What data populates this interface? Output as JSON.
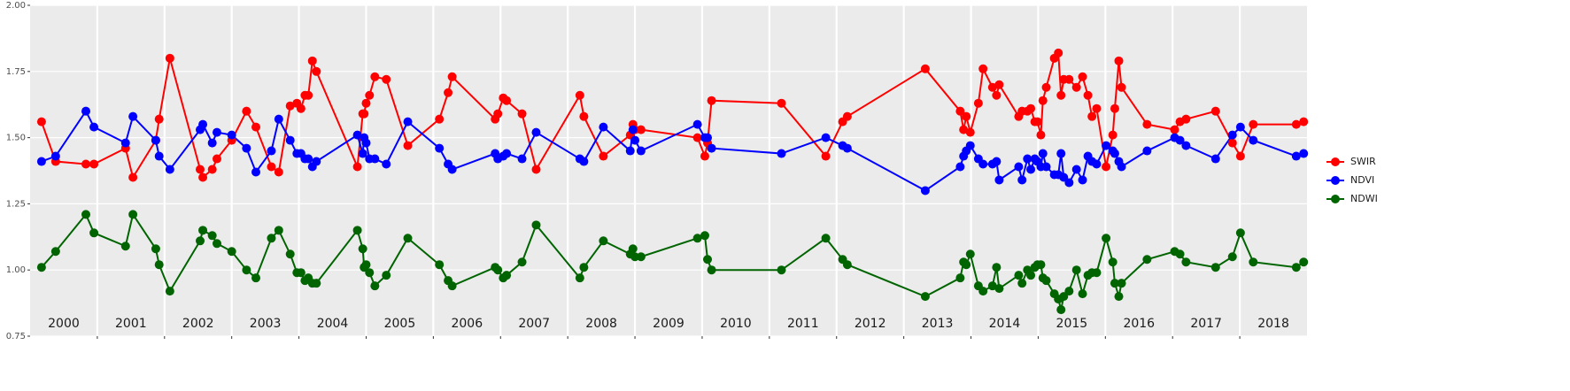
{
  "chart_data": {
    "type": "line",
    "x": [
      2000.17,
      2000.38,
      2000.83,
      2000.95,
      2001.42,
      2001.53,
      2001.87,
      2001.92,
      2002.08,
      2002.53,
      2002.57,
      2002.71,
      2002.78,
      2003.0,
      2003.22,
      2003.36,
      2003.59,
      2003.7,
      2003.87,
      2003.97,
      2004.03,
      2004.09,
      2004.14,
      2004.2,
      2004.26,
      2004.87,
      2004.95,
      2004.97,
      2005.0,
      2005.05,
      2005.13,
      2005.3,
      2005.62,
      2006.09,
      2006.22,
      2006.28,
      2006.92,
      2006.96,
      2007.04,
      2007.09,
      2007.32,
      2007.53,
      2008.18,
      2008.24,
      2008.53,
      2008.93,
      2008.97,
      2009.0,
      2009.09,
      2009.93,
      2010.04,
      2010.08,
      2010.14,
      2011.18,
      2011.84,
      2012.09,
      2012.16,
      2013.32,
      2013.84,
      2013.89,
      2013.93,
      2013.99,
      2014.11,
      2014.18,
      2014.32,
      2014.38,
      2014.42,
      2014.71,
      2014.76,
      2014.84,
      2014.89,
      2014.95,
      2014.99,
      2015.04,
      2015.07,
      2015.12,
      2015.24,
      2015.3,
      2015.34,
      2015.38,
      2015.46,
      2015.57,
      2015.66,
      2015.74,
      2015.8,
      2015.87,
      2016.01,
      2016.11,
      2016.14,
      2016.2,
      2016.24,
      2016.62,
      2017.03,
      2017.11,
      2017.2,
      2017.64,
      2017.89,
      2018.01,
      2018.2,
      2018.84,
      2018.95
    ],
    "series": [
      {
        "name": "SWIR",
        "color": "#ff0000",
        "values": [
          1.56,
          1.41,
          1.4,
          1.4,
          1.46,
          1.35,
          1.49,
          1.57,
          1.8,
          1.38,
          1.35,
          1.38,
          1.42,
          1.49,
          1.6,
          1.54,
          1.39,
          1.37,
          1.62,
          1.63,
          1.61,
          1.66,
          1.66,
          1.79,
          1.75,
          1.39,
          1.59,
          1.59,
          1.63,
          1.66,
          1.73,
          1.72,
          1.47,
          1.57,
          1.67,
          1.73,
          1.57,
          1.59,
          1.65,
          1.64,
          1.59,
          1.38,
          1.66,
          1.58,
          1.43,
          1.51,
          1.55,
          1.53,
          1.53,
          1.5,
          1.43,
          1.48,
          1.64,
          1.63,
          1.43,
          1.56,
          1.58,
          1.76,
          1.6,
          1.53,
          1.58,
          1.52,
          1.63,
          1.76,
          1.69,
          1.66,
          1.7,
          1.58,
          1.6,
          1.6,
          1.61,
          1.56,
          1.56,
          1.51,
          1.64,
          1.69,
          1.8,
          1.82,
          1.66,
          1.72,
          1.72,
          1.69,
          1.73,
          1.66,
          1.58,
          1.61,
          1.39,
          1.51,
          1.61,
          1.79,
          1.69,
          1.55,
          1.53,
          1.56,
          1.57,
          1.6,
          1.48,
          1.43,
          1.55,
          1.55,
          1.56
        ]
      },
      {
        "name": "NDVI",
        "color": "#0000ff",
        "values": [
          1.41,
          1.43,
          1.6,
          1.54,
          1.48,
          1.58,
          1.49,
          1.43,
          1.38,
          1.53,
          1.55,
          1.48,
          1.52,
          1.51,
          1.46,
          1.37,
          1.45,
          1.57,
          1.49,
          1.44,
          1.44,
          1.42,
          1.42,
          1.39,
          1.41,
          1.51,
          1.44,
          1.5,
          1.48,
          1.42,
          1.42,
          1.4,
          1.56,
          1.46,
          1.4,
          1.38,
          1.44,
          1.42,
          1.43,
          1.44,
          1.42,
          1.52,
          1.42,
          1.41,
          1.54,
          1.45,
          1.53,
          1.49,
          1.45,
          1.55,
          1.5,
          1.5,
          1.46,
          1.44,
          1.5,
          1.47,
          1.46,
          1.3,
          1.39,
          1.43,
          1.45,
          1.47,
          1.42,
          1.4,
          1.4,
          1.41,
          1.34,
          1.39,
          1.34,
          1.42,
          1.38,
          1.42,
          1.41,
          1.39,
          1.44,
          1.39,
          1.36,
          1.36,
          1.44,
          1.35,
          1.33,
          1.38,
          1.34,
          1.43,
          1.41,
          1.4,
          1.47,
          1.45,
          1.44,
          1.41,
          1.39,
          1.45,
          1.5,
          1.49,
          1.47,
          1.42,
          1.51,
          1.54,
          1.49,
          1.43,
          1.44
        ]
      },
      {
        "name": "NDWI",
        "color": "#006400",
        "values": [
          1.01,
          1.07,
          1.21,
          1.14,
          1.09,
          1.21,
          1.08,
          1.02,
          0.92,
          1.11,
          1.15,
          1.13,
          1.1,
          1.07,
          1.0,
          0.97,
          1.12,
          1.15,
          1.06,
          0.99,
          0.99,
          0.96,
          0.97,
          0.95,
          0.95,
          1.15,
          1.08,
          1.01,
          1.02,
          0.99,
          0.94,
          0.98,
          1.12,
          1.02,
          0.96,
          0.94,
          1.01,
          1.0,
          0.97,
          0.98,
          1.03,
          1.17,
          0.97,
          1.01,
          1.11,
          1.06,
          1.08,
          1.05,
          1.05,
          1.12,
          1.13,
          1.04,
          1.0,
          1.0,
          1.12,
          1.04,
          1.02,
          0.9,
          0.97,
          1.03,
          1.02,
          1.06,
          0.94,
          0.92,
          0.94,
          1.01,
          0.93,
          0.98,
          0.95,
          1.0,
          0.98,
          1.01,
          1.02,
          1.02,
          0.97,
          0.96,
          0.91,
          0.89,
          0.85,
          0.9,
          0.92,
          1.0,
          0.91,
          0.98,
          0.99,
          0.99,
          1.12,
          1.03,
          0.95,
          0.9,
          0.95,
          1.04,
          1.07,
          1.06,
          1.03,
          1.01,
          1.05,
          1.14,
          1.03,
          1.01,
          1.03
        ]
      }
    ],
    "xlim": [
      2000,
      2019
    ],
    "xticks": [
      {
        "value": 2000.5,
        "label": "2000"
      },
      {
        "value": 2001.5,
        "label": "2001"
      },
      {
        "value": 2002.5,
        "label": "2002"
      },
      {
        "value": 2003.5,
        "label": "2003"
      },
      {
        "value": 2004.5,
        "label": "2004"
      },
      {
        "value": 2005.5,
        "label": "2005"
      },
      {
        "value": 2006.5,
        "label": "2006"
      },
      {
        "value": 2007.5,
        "label": "2007"
      },
      {
        "value": 2008.5,
        "label": "2008"
      },
      {
        "value": 2009.5,
        "label": "2009"
      },
      {
        "value": 2010.5,
        "label": "2010"
      },
      {
        "value": 2011.5,
        "label": "2011"
      },
      {
        "value": 2012.5,
        "label": "2012"
      },
      {
        "value": 2013.5,
        "label": "2013"
      },
      {
        "value": 2014.5,
        "label": "2014"
      },
      {
        "value": 2015.5,
        "label": "2015"
      },
      {
        "value": 2016.5,
        "label": "2016"
      },
      {
        "value": 2017.5,
        "label": "2017"
      },
      {
        "value": 2018.5,
        "label": "2018"
      }
    ],
    "vlines": [
      2001,
      2002,
      2003,
      2004,
      2005,
      2006,
      2007,
      2008,
      2009,
      2010,
      2011,
      2012,
      2013,
      2014,
      2015,
      2016,
      2017,
      2018
    ],
    "ylim": [
      0.75,
      2.0
    ],
    "yticks": [
      {
        "value": 0.75,
        "label": "0.75"
      },
      {
        "value": 1,
        "label": "1.00"
      },
      {
        "value": 1.25,
        "label": "1.25"
      },
      {
        "value": 1.5,
        "label": "1.50"
      },
      {
        "value": 1.75,
        "label": "1.75"
      },
      {
        "value": 2,
        "label": "2.00"
      }
    ],
    "grid": true,
    "legend": "right"
  }
}
